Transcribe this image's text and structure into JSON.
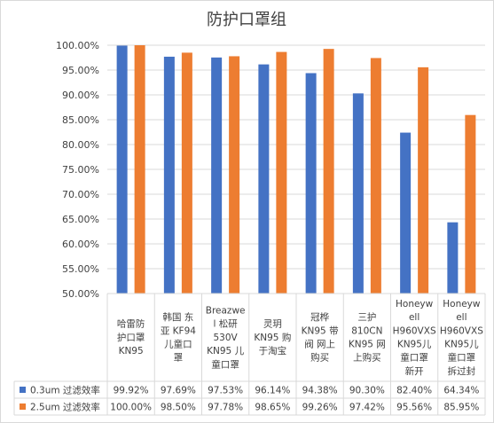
{
  "chart_data": {
    "type": "bar",
    "title": "防护口罩组",
    "ylim": [
      0.5,
      1.0
    ],
    "yticks": [
      "50.00%",
      "55.00%",
      "60.00%",
      "65.00%",
      "70.00%",
      "75.00%",
      "80.00%",
      "85.00%",
      "90.00%",
      "95.00%",
      "100.00%"
    ],
    "grid": true,
    "legend": "data-table-left",
    "categories": [
      "哈雷防护口罩KN95",
      "韩国 东亚 KF94儿童口罩",
      "Breazwell 松研530V KN95 儿童口罩",
      "灵玥KN95 购于淘宝",
      "冠桦KN95 带阀 网上购买",
      "三护810CN KN95 网上购买",
      "Honeywell H960VXS KN95儿童口罩新开",
      "Honeywell H960VXS KN95儿童口罩拆过封"
    ],
    "category_lines": [
      [
        "哈雷防",
        "护口罩",
        "KN95"
      ],
      [
        "韩国 东",
        "亚 KF94",
        "儿童口",
        "罩"
      ],
      [
        "Breazwe",
        "l 松研",
        "530V",
        "KN95 儿",
        "童口罩"
      ],
      [
        "灵玥",
        "KN95 购",
        "于淘宝"
      ],
      [
        "冠桦",
        "KN95 带",
        "阀 网上",
        "购买"
      ],
      [
        "三护",
        "810CN",
        "KN95 网",
        "上购买"
      ],
      [
        "Honeyw",
        "ell",
        "H960VXS",
        "KN95儿",
        "童口罩",
        "新开"
      ],
      [
        "Honeyw",
        "ell",
        "H960VXS",
        "KN95儿",
        "童口罩",
        "拆过封"
      ]
    ],
    "series": [
      {
        "name": "0.3um 过滤效率",
        "color": "#4472c4",
        "values": [
          0.9992,
          0.9769,
          0.9753,
          0.9614,
          0.9438,
          0.903,
          0.824,
          0.6434
        ],
        "labels": [
          "99.92%",
          "97.69%",
          "97.53%",
          "96.14%",
          "94.38%",
          "90.30%",
          "82.40%",
          "64.34%"
        ]
      },
      {
        "name": "2.5um 过滤效率",
        "color": "#ed7d31",
        "values": [
          1.0,
          0.985,
          0.9778,
          0.9865,
          0.9926,
          0.9742,
          0.9556,
          0.8595
        ],
        "labels": [
          "100.00%",
          "98.50%",
          "97.78%",
          "98.65%",
          "99.26%",
          "97.42%",
          "95.56%",
          "85.95%"
        ]
      }
    ]
  }
}
